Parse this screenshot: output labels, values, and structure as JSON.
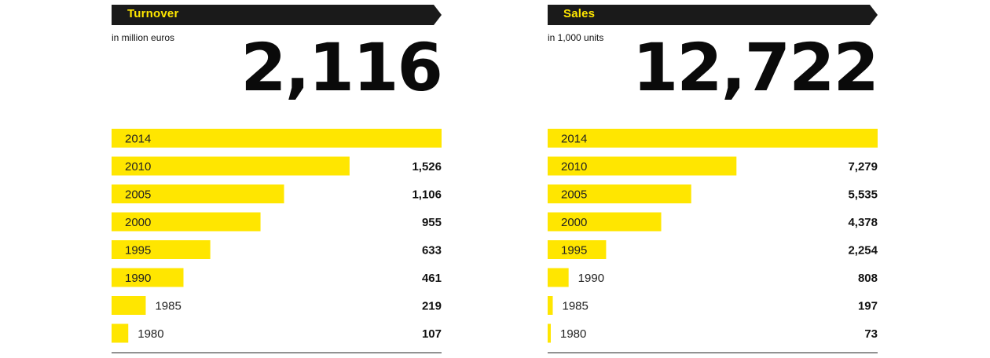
{
  "colors": {
    "bar": "#ffe600",
    "banner": "#1a1a1a",
    "text": "#111111"
  },
  "chart_data": [
    {
      "type": "bar",
      "orientation": "horizontal",
      "title": "Turnover",
      "unit_label": "in million euros",
      "highlight_value": "2,116",
      "categories": [
        "2014",
        "2010",
        "2005",
        "2000",
        "1995",
        "1990",
        "1985",
        "1980"
      ],
      "values": [
        2116,
        1526,
        1106,
        955,
        633,
        461,
        219,
        107
      ],
      "value_labels": [
        "",
        "1,526",
        "1,106",
        "955",
        "633",
        "461",
        "219",
        "107"
      ],
      "xlim": [
        0,
        2116
      ]
    },
    {
      "type": "bar",
      "orientation": "horizontal",
      "title": "Sales",
      "unit_label": "in 1,000 units",
      "highlight_value": "12,722",
      "categories": [
        "2014",
        "2010",
        "2005",
        "2000",
        "1995",
        "1990",
        "1985",
        "1980"
      ],
      "values": [
        12722,
        7279,
        5535,
        4378,
        2254,
        808,
        197,
        73
      ],
      "value_labels": [
        "",
        "7,279",
        "5,535",
        "4,378",
        "2,254",
        "808",
        "197",
        "73"
      ],
      "xlim": [
        0,
        12722
      ]
    }
  ]
}
